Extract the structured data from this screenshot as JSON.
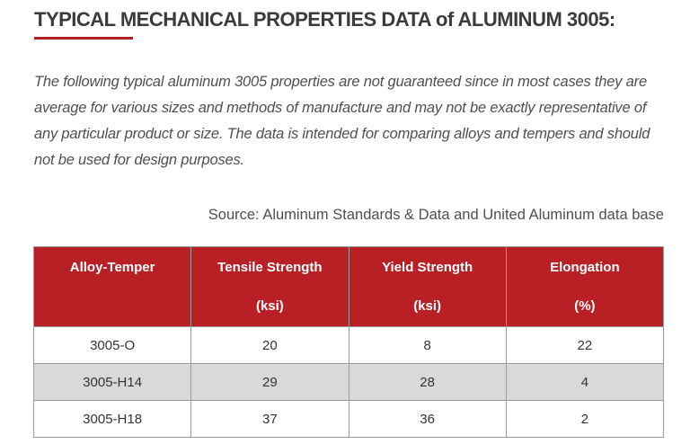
{
  "page": {
    "title": "TYPICAL MECHANICAL PROPERTIES DATA of ALUMINUM 3005:",
    "disclaimer": "The following typical aluminum 3005 properties are not guaranteed since in most cases they are average for various sizes and methods of manufacture and may not be exactly representative of any particular product or size. The data is intended for comparing alloys and tempers and should not be used for design purposes.",
    "source": "Source: Aluminum Standards & Data and United Aluminum data base"
  },
  "colors": {
    "header_red": "#b92025",
    "title_underline_red": "#b22025",
    "alt_row_gray": "#d9d9d9",
    "border_gray": "#999999",
    "title_text": "#3b3b3b",
    "body_text": "#333333",
    "muted_text": "#4f4f4f"
  },
  "table": {
    "columns": [
      {
        "label": "Alloy-Temper",
        "unit": ""
      },
      {
        "label": "Tensile Strength",
        "unit": "(ksi)"
      },
      {
        "label": "Yield Strength",
        "unit": "(ksi)"
      },
      {
        "label": "Elongation",
        "unit": "(%)"
      }
    ],
    "rows": [
      [
        "3005-O",
        "20",
        "8",
        "22"
      ],
      [
        "3005-H14",
        "29",
        "28",
        "4"
      ],
      [
        "3005-H18",
        "37",
        "36",
        "2"
      ]
    ]
  }
}
